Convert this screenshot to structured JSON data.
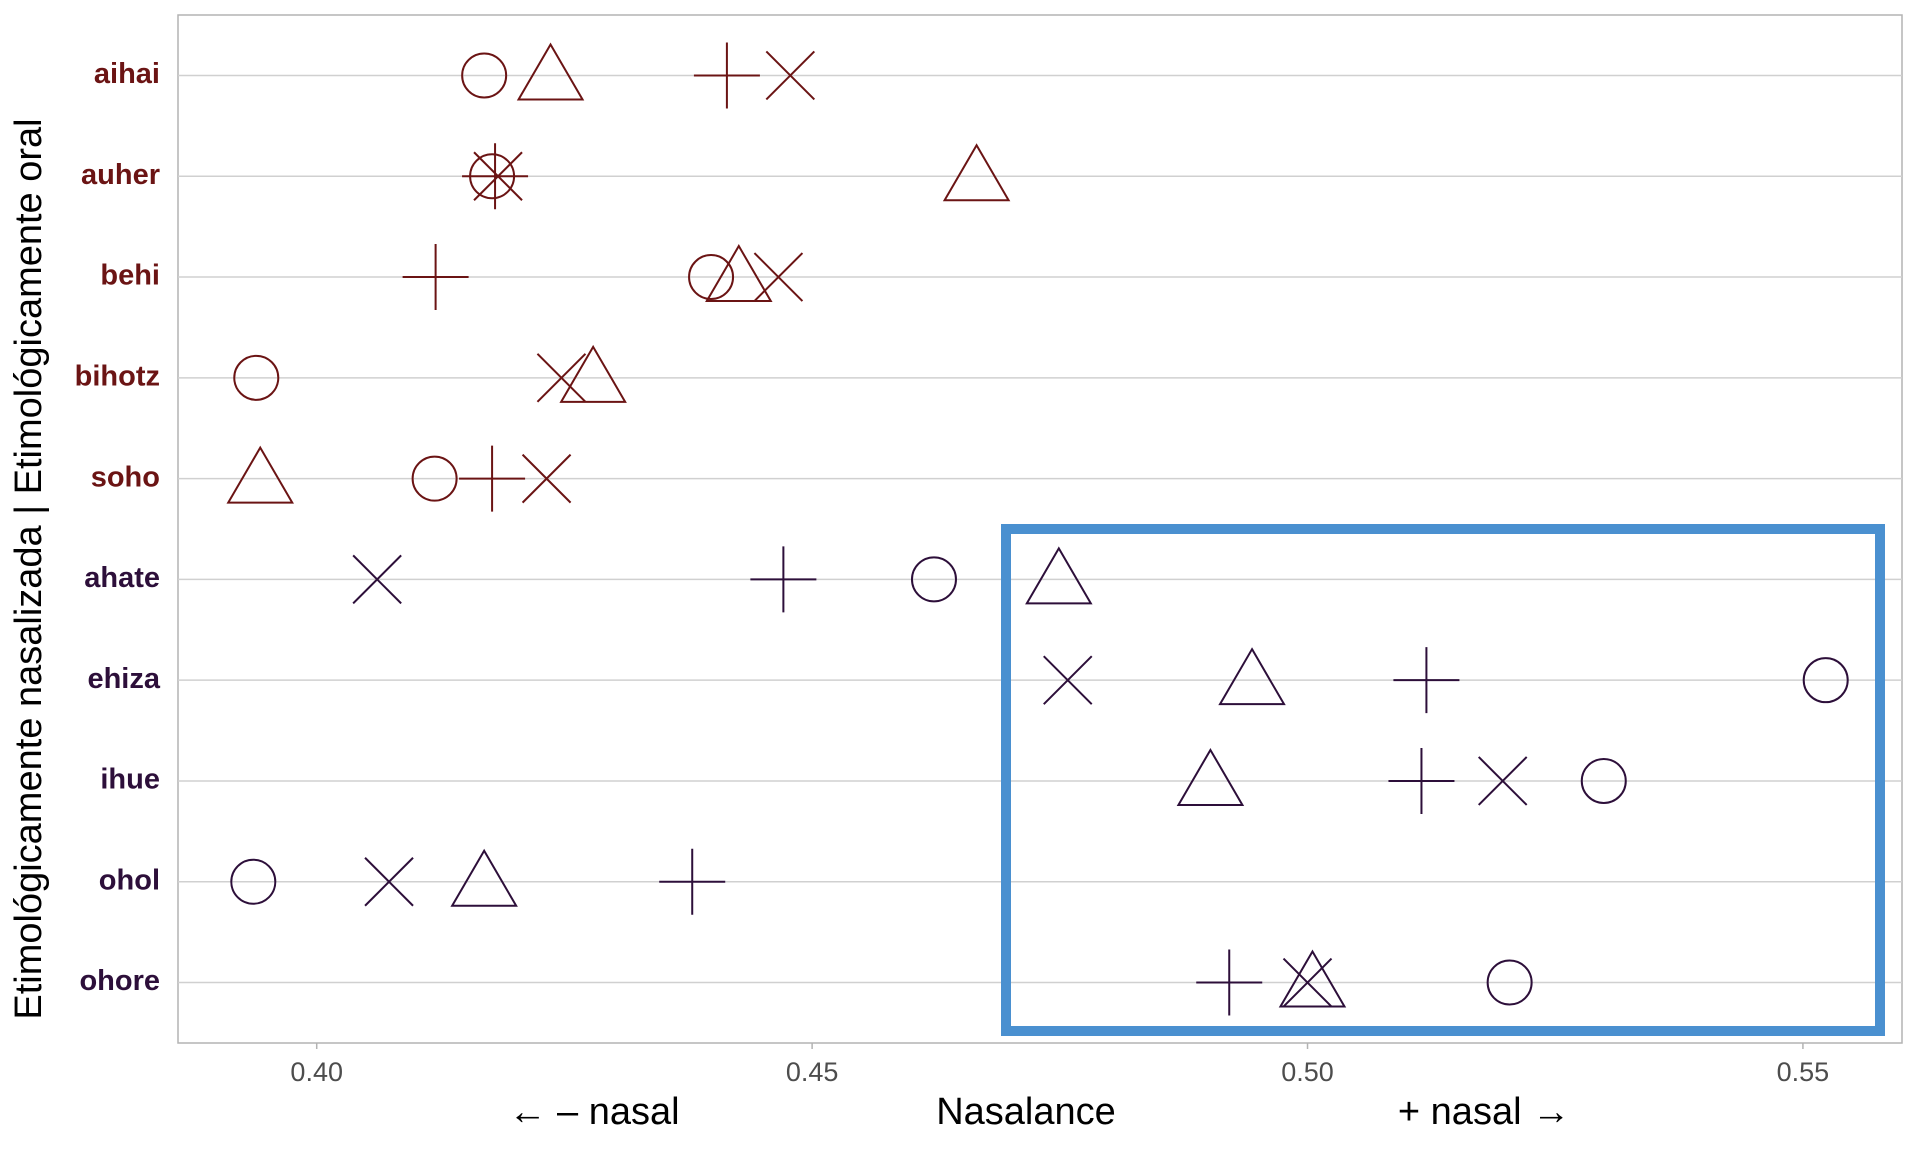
{
  "chart_data": {
    "type": "dot",
    "categories": [
      "aihai",
      "auher",
      "behi",
      "bihotz",
      "soho",
      "ahate",
      "ehiza",
      "ihue",
      "ohol",
      "ohore"
    ],
    "category_colors": [
      "#6b1414",
      "#6b1414",
      "#6b1414",
      "#6b1414",
      "#6b1414",
      "#2d0f3a",
      "#2d0f3a",
      "#2d0f3a",
      "#2d0f3a",
      "#2d0f3a"
    ],
    "series": [
      {
        "marker": "circle",
        "values": [
          0.4169,
          0.4177,
          0.4398,
          0.3939,
          0.4119,
          0.4623,
          0.5523,
          0.5299,
          0.3936,
          0.5204
        ]
      },
      {
        "marker": "triangle",
        "values": [
          0.4236,
          0.4666,
          0.4426,
          0.4279,
          0.3943,
          0.4749,
          0.4944,
          0.4902,
          0.4169,
          0.5005
        ]
      },
      {
        "marker": "plus",
        "values": [
          0.4414,
          0.418,
          0.412,
          null,
          0.4177,
          0.4471,
          0.512,
          0.5115,
          0.4379,
          0.4921
        ]
      },
      {
        "marker": "cross",
        "values": [
          0.4478,
          0.4183,
          0.4466,
          0.4247,
          0.4232,
          0.4061,
          0.4758,
          0.5197,
          0.4073,
          0.5
        ]
      }
    ],
    "xlim": [
      0.386,
      0.56
    ],
    "xticks": [
      {
        "value": 0.4,
        "label": "0.40"
      },
      {
        "value": 0.45,
        "label": "0.45"
      },
      {
        "value": 0.5,
        "label": "0.50"
      },
      {
        "value": 0.55,
        "label": "0.55"
      }
    ],
    "xlabel": "Nasalance",
    "xlabel_left": "← – nasal",
    "xlabel_right": "+ nasal →",
    "ylabel": "Etimológicamente nasalizada  |  Etimológicamente oral",
    "grid": true
  }
}
